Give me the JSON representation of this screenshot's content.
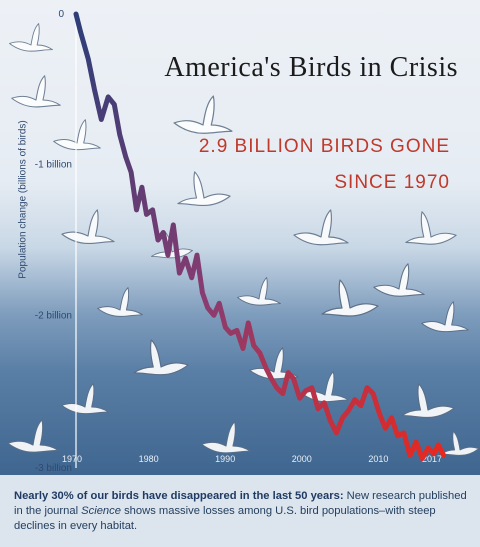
{
  "title": "America's Birds in Crisis",
  "subtitle_line1": "2.9 BILLION BIRDS GONE",
  "subtitle_line2": "SINCE 1970",
  "caption": {
    "bold": "Nearly 30% of our birds have disappeared in the last 50 years:",
    "part1": " New research published in the journal ",
    "italic": "Science",
    "part2": " shows massive losses among U.S. bird populations–with steep declines in every habitat."
  },
  "colors": {
    "line_start": "#2c3e78",
    "line_mid": "#8a3c70",
    "line_end": "#e8281e",
    "title": "#1b1b1b",
    "subtitle": "#c0392b"
  },
  "chart_data": {
    "type": "line",
    "ylabel": "Population change (billions of birds)",
    "xlim": [
      1970,
      2017
    ],
    "ylim": [
      0,
      -3
    ],
    "x_ticks": [
      1970,
      1980,
      1990,
      2000,
      2010,
      2017
    ],
    "x_tick_labels": [
      "1970",
      "1980",
      "1990",
      "2000",
      "2010",
      "2017"
    ],
    "y_ticks": [
      0,
      -1,
      -2,
      -3
    ],
    "y_tick_labels": [
      "0",
      "-1 billion",
      "-2 billion",
      "-3 billion"
    ],
    "series": [
      {
        "x": [
          1970,
          1970.6,
          1971.6,
          1972.4,
          1973.3,
          1974.2,
          1975,
          1975.7,
          1976.5,
          1977.2,
          1977.9,
          1978.6,
          1979.2,
          1980,
          1980.7,
          1981.4,
          1982,
          1982.7,
          1983.5,
          1984.3,
          1985.1,
          1985.8,
          1986.5,
          1987.2,
          1988,
          1988.7,
          1989.5,
          1990.2,
          1991,
          1991.8,
          1992.5,
          1993.2,
          1994,
          1994.8,
          1995.5,
          1996.2,
          1997,
          1997.7,
          1998.4,
          1999.2,
          2000,
          2000.8,
          2001.6,
          2002.4,
          2003.2,
          2004,
          2004.8,
          2005.6,
          2006.4,
          2007.2,
          2008,
          2008.8,
          2009.6,
          2010.4,
          2011.2,
          2012,
          2012.8,
          2013.6,
          2014.4,
          2015.2,
          2016,
          2016.7,
          2017.3,
          2018
        ],
        "y": [
          0,
          -0.12,
          -0.3,
          -0.5,
          -0.7,
          -0.55,
          -0.6,
          -0.8,
          -0.95,
          -1.05,
          -1.3,
          -1.15,
          -1.33,
          -1.3,
          -1.5,
          -1.45,
          -1.6,
          -1.4,
          -1.72,
          -1.62,
          -1.75,
          -1.6,
          -1.85,
          -1.95,
          -2.0,
          -1.92,
          -2.08,
          -2.12,
          -2.1,
          -2.22,
          -2.05,
          -2.2,
          -2.25,
          -2.35,
          -2.42,
          -2.48,
          -2.52,
          -2.38,
          -2.42,
          -2.55,
          -2.5,
          -2.48,
          -2.62,
          -2.58,
          -2.7,
          -2.78,
          -2.68,
          -2.63,
          -2.56,
          -2.6,
          -2.48,
          -2.52,
          -2.65,
          -2.75,
          -2.68,
          -2.8,
          -2.78,
          -2.93,
          -2.84,
          -2.95,
          -2.88,
          -2.92,
          -2.86,
          -2.93
        ]
      }
    ]
  }
}
